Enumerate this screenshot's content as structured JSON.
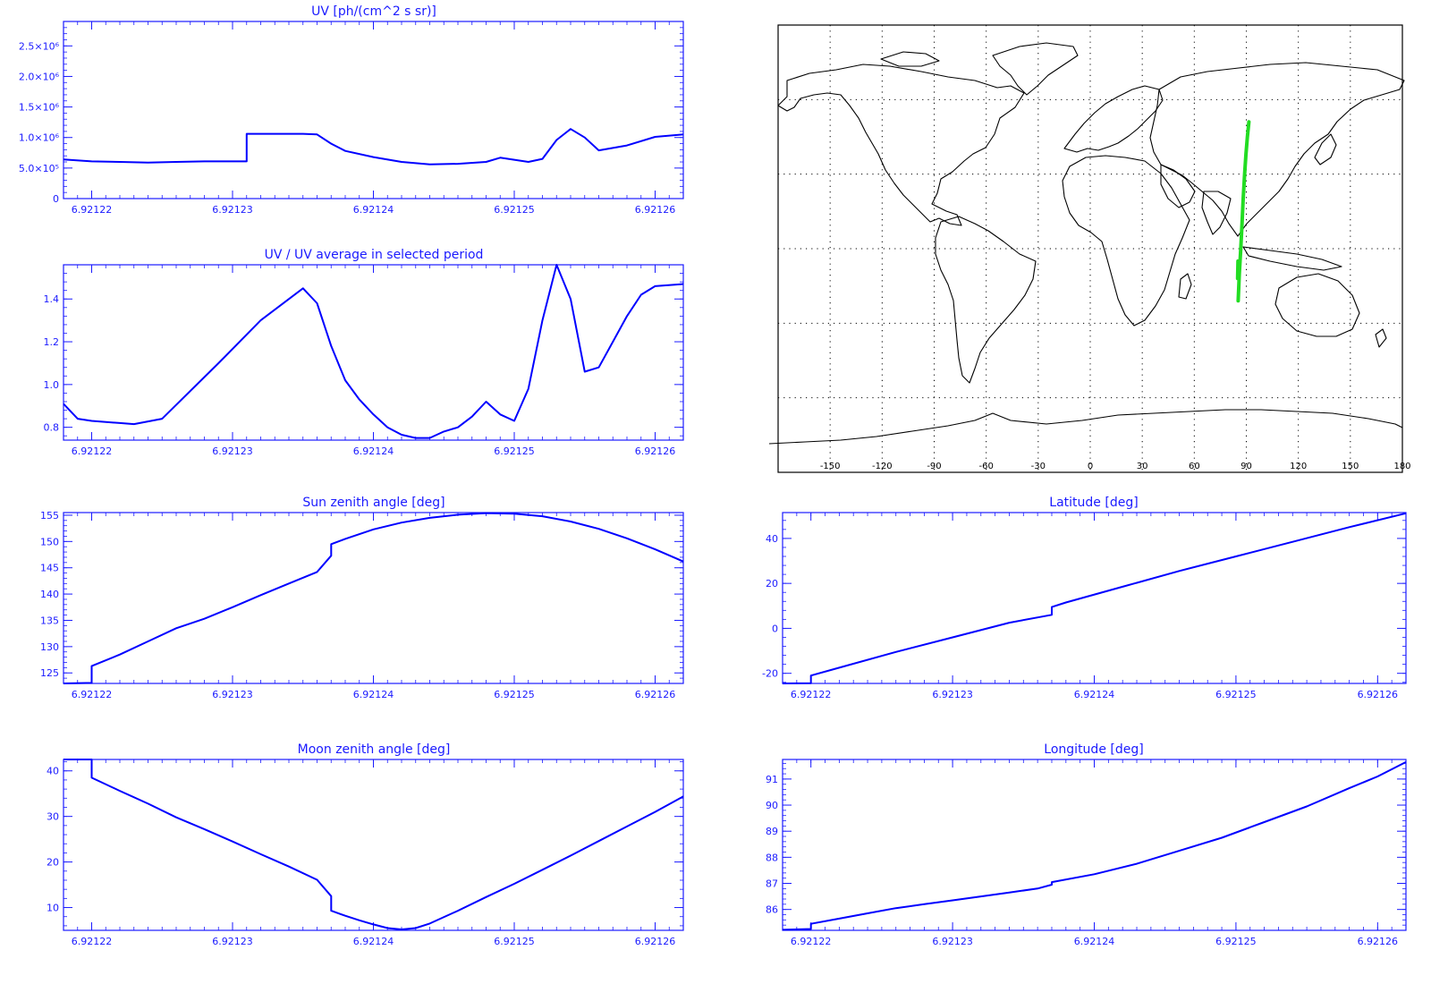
{
  "colors": {
    "axis": "#1a1aff",
    "line": "#0000ff",
    "track": "#22dd22",
    "map": "#000000"
  },
  "chart_data": [
    {
      "id": "uv",
      "type": "line",
      "title": "UV [ph/(cm^2 s sr)]",
      "xlim": [
        6.921218,
        6.921262
      ],
      "ylim": [
        0,
        2900000
      ],
      "xticks": [
        6.92122,
        6.92123,
        6.92124,
        6.92125,
        6.92126
      ],
      "xticklabels": [
        "6.92122",
        "6.92123",
        "6.92124",
        "6.92125",
        "6.92126"
      ],
      "yticks": [
        0,
        500000,
        1000000,
        1500000,
        2000000,
        2500000
      ],
      "yticklabels": [
        "0",
        "5.0×10⁵",
        "1.0×10⁶",
        "1.5×10⁶",
        "2.0×10⁶",
        "2.5×10⁶"
      ],
      "x": [
        6.921218,
        6.92122,
        6.921222,
        6.921224,
        6.921226,
        6.921228,
        6.921231,
        6.921231,
        6.921233,
        6.921235,
        6.921236,
        6.921237,
        6.921238,
        6.92124,
        6.921242,
        6.921244,
        6.921246,
        6.921248,
        6.921249,
        6.921251,
        6.921252,
        6.921253,
        6.921254,
        6.921255,
        6.921256,
        6.921258,
        6.92126,
        6.921262
      ],
      "y": [
        640000,
        610000,
        600000,
        590000,
        600000,
        610000,
        610000,
        1060000,
        1060000,
        1060000,
        1050000,
        900000,
        780000,
        680000,
        600000,
        560000,
        570000,
        600000,
        670000,
        600000,
        650000,
        960000,
        1140000,
        1000000,
        790000,
        870000,
        1010000,
        1050000
      ]
    },
    {
      "id": "ratio",
      "type": "line",
      "title": "UV / UV average in selected period",
      "xlim": [
        6.921218,
        6.921262
      ],
      "ylim": [
        0.74,
        1.56
      ],
      "xticks": [
        6.92122,
        6.92123,
        6.92124,
        6.92125,
        6.92126
      ],
      "xticklabels": [
        "6.92122",
        "6.92123",
        "6.92124",
        "6.92125",
        "6.92126"
      ],
      "yticks": [
        0.8,
        1.0,
        1.2,
        1.4
      ],
      "yticklabels": [
        "0.8",
        "1.0",
        "1.2",
        "1.4"
      ],
      "x": [
        6.921218,
        6.921219,
        6.92122,
        6.921222,
        6.921223,
        6.921225,
        6.921229,
        6.921232,
        6.921235,
        6.921236,
        6.921237,
        6.921238,
        6.921239,
        6.92124,
        6.921241,
        6.921242,
        6.921243,
        6.921244,
        6.921245,
        6.921246,
        6.921247,
        6.921248,
        6.921249,
        6.92125,
        6.921251,
        6.921252,
        6.921253,
        6.921254,
        6.921255,
        6.921256,
        6.921257,
        6.921258,
        6.921259,
        6.92126,
        6.921262
      ],
      "y": [
        0.91,
        0.84,
        0.83,
        0.82,
        0.815,
        0.84,
        1.1,
        1.3,
        1.45,
        1.38,
        1.18,
        1.02,
        0.93,
        0.86,
        0.8,
        0.765,
        0.75,
        0.75,
        0.78,
        0.8,
        0.85,
        0.92,
        0.86,
        0.83,
        0.98,
        1.3,
        1.56,
        1.4,
        1.06,
        1.08,
        1.2,
        1.32,
        1.42,
        1.46,
        1.47
      ]
    },
    {
      "id": "sun",
      "type": "line",
      "title": "Sun zenith angle [deg]",
      "xlim": [
        6.921218,
        6.921262
      ],
      "ylim": [
        123,
        155.5
      ],
      "xticks": [
        6.92122,
        6.92123,
        6.92124,
        6.92125,
        6.92126
      ],
      "xticklabels": [
        "6.92122",
        "6.92123",
        "6.92124",
        "6.92125",
        "6.92126"
      ],
      "yticks": [
        125,
        130,
        135,
        140,
        145,
        150,
        155
      ],
      "yticklabels": [
        "125",
        "130",
        "135",
        "140",
        "145",
        "150",
        "155"
      ],
      "x": [
        6.921218,
        6.92122,
        6.92122,
        6.921222,
        6.921224,
        6.921226,
        6.921228,
        6.92123,
        6.921232,
        6.921234,
        6.921236,
        6.921237,
        6.921237,
        6.921238,
        6.92124,
        6.921242,
        6.921244,
        6.921246,
        6.921248,
        6.92125,
        6.921252,
        6.921254,
        6.921256,
        6.921258,
        6.92126,
        6.921262
      ],
      "y": [
        123,
        123.1,
        126.3,
        128.5,
        131,
        133.5,
        135.3,
        137.5,
        139.8,
        142,
        144.2,
        147.3,
        149.5,
        150.5,
        152.3,
        153.6,
        154.5,
        155.1,
        155.4,
        155.3,
        154.8,
        153.8,
        152.4,
        150.6,
        148.5,
        146.2
      ]
    },
    {
      "id": "lat",
      "type": "line",
      "title": "Latitude [deg]",
      "xlim": [
        6.921218,
        6.921262
      ],
      "ylim": [
        -24.5,
        51.5
      ],
      "xticks": [
        6.92122,
        6.92123,
        6.92124,
        6.92125,
        6.92126
      ],
      "xticklabels": [
        "6.92122",
        "6.92123",
        "6.92124",
        "6.92125",
        "6.92126"
      ],
      "yticks": [
        -20,
        0,
        20,
        40
      ],
      "yticklabels": [
        "-20",
        "0",
        "20",
        "40"
      ],
      "x": [
        6.921218,
        6.92122,
        6.92122,
        6.921222,
        6.921226,
        6.92123,
        6.921234,
        6.921237,
        6.921237,
        6.921238,
        6.921242,
        6.921246,
        6.92125,
        6.921254,
        6.921258,
        6.921262
      ],
      "y": [
        -24.5,
        -24.4,
        -21,
        -17.5,
        -10.5,
        -4,
        2.5,
        6,
        9.5,
        11.5,
        18.5,
        25.5,
        32,
        38.5,
        45,
        51.2
      ]
    },
    {
      "id": "moon",
      "type": "line",
      "title": "Moon zenith angle [deg]",
      "xlim": [
        6.921218,
        6.921262
      ],
      "ylim": [
        5,
        42.5
      ],
      "xticks": [
        6.92122,
        6.92123,
        6.92124,
        6.92125,
        6.92126
      ],
      "xticklabels": [
        "6.92122",
        "6.92123",
        "6.92124",
        "6.92125",
        "6.92126"
      ],
      "yticks": [
        10,
        20,
        30,
        40
      ],
      "yticklabels": [
        "10",
        "20",
        "30",
        "40"
      ],
      "x": [
        6.921218,
        6.92122,
        6.92122,
        6.921222,
        6.921224,
        6.921226,
        6.921228,
        6.92123,
        6.921232,
        6.921234,
        6.921236,
        6.921237,
        6.921237,
        6.921238,
        6.921239,
        6.92124,
        6.921241,
        6.921242,
        6.921243,
        6.921244,
        6.921246,
        6.921248,
        6.92125,
        6.921252,
        6.921254,
        6.921256,
        6.921258,
        6.92126,
        6.921262
      ],
      "y": [
        42.5,
        42.5,
        38.5,
        35.6,
        32.8,
        29.8,
        27.2,
        24.5,
        21.7,
        19,
        16.1,
        12.5,
        9.3,
        8.2,
        7.2,
        6.3,
        5.5,
        5.2,
        5.5,
        6.5,
        9.3,
        12.3,
        15.2,
        18.3,
        21.4,
        24.6,
        27.8,
        31,
        34.4
      ]
    },
    {
      "id": "lon",
      "type": "line",
      "title": "Longitude [deg]",
      "xlim": [
        6.921218,
        6.921262
      ],
      "ylim": [
        85.2,
        91.75
      ],
      "xticks": [
        6.92122,
        6.92123,
        6.92124,
        6.92125,
        6.92126
      ],
      "xticklabels": [
        "6.92122",
        "6.92123",
        "6.92124",
        "6.92125",
        "6.92126"
      ],
      "yticks": [
        86,
        87,
        88,
        89,
        90,
        91
      ],
      "yticklabels": [
        "86",
        "87",
        "88",
        "89",
        "90",
        "91"
      ],
      "x": [
        6.921218,
        6.92122,
        6.92122,
        6.921222,
        6.921224,
        6.921226,
        6.921228,
        6.92123,
        6.921232,
        6.921234,
        6.921236,
        6.921237,
        6.921237,
        6.92124,
        6.921243,
        6.921246,
        6.921249,
        6.921252,
        6.921255,
        6.921258,
        6.92126,
        6.921262
      ],
      "y": [
        85.22,
        85.25,
        85.45,
        85.65,
        85.85,
        86.05,
        86.2,
        86.35,
        86.5,
        86.65,
        86.8,
        86.95,
        87.05,
        87.35,
        87.75,
        88.25,
        88.75,
        89.35,
        89.95,
        90.65,
        91.1,
        91.65
      ]
    },
    {
      "id": "map",
      "type": "scatter",
      "xlim": [
        -180,
        180
      ],
      "ylim": [
        -90,
        90
      ],
      "xticks": [
        -150,
        -120,
        -90,
        -60,
        -30,
        0,
        30,
        60,
        90,
        120,
        150,
        180
      ],
      "xticklabels": [
        "-150",
        "-120",
        "-90",
        "-60",
        "-30",
        "0",
        "30",
        "60",
        "90",
        "120",
        "150",
        "180"
      ],
      "grid": true,
      "series": [
        {
          "x": [
            85.3,
            86.0,
            86.8,
            87.5,
            88.2,
            89.0,
            89.8,
            90.6,
            91.5
          ],
          "y": [
            -21,
            -10,
            0,
            10,
            20,
            30,
            38,
            45,
            51
          ]
        },
        {
          "x": [
            85.0,
            85.2
          ],
          "y": [
            -12,
            -5
          ]
        }
      ]
    }
  ]
}
